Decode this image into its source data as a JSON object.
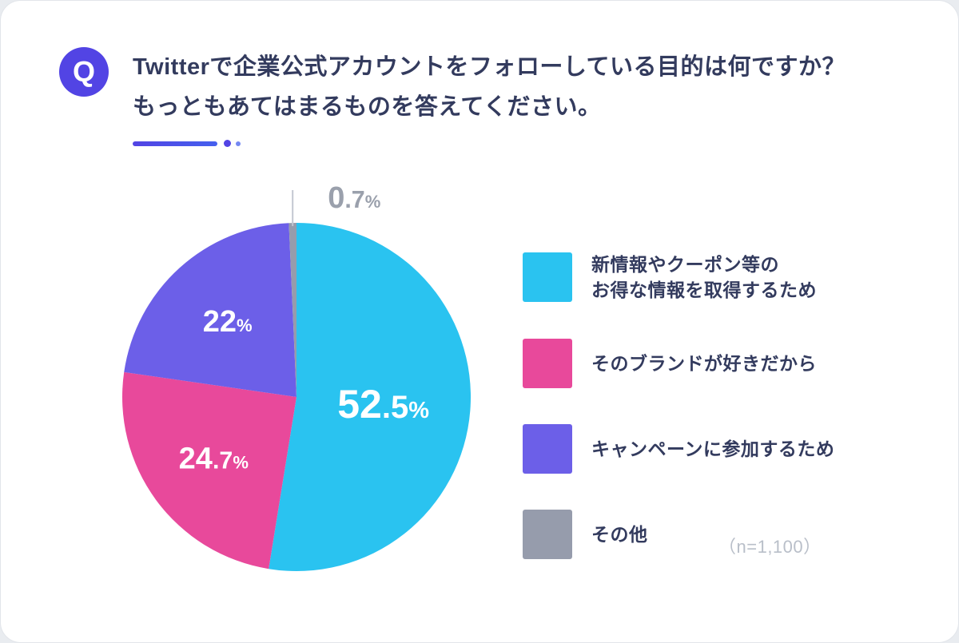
{
  "question": {
    "badge": "Q",
    "line1": "Twitterで企業公式アカウントをフォローしている目的は何ですか？",
    "line2": "もっともあてはまるものを答えてください。"
  },
  "colors": {
    "accent": "#5244e4",
    "accent2": "#4560ee",
    "title": "#333b5e",
    "note_gray": "#b9bfc9",
    "callout_line": "#c3c7d1"
  },
  "chart_data": {
    "type": "pie",
    "title": "Twitterで企業公式アカウントをフォローしている目的は何ですか？もっともあてはまるものを答えてください。",
    "unit": "%",
    "start_angle_deg": -90,
    "direction": "clockwise",
    "legend_position": "right",
    "sample_note": "（n=1,100）",
    "slices": [
      {
        "label": "新情報やクーポン等のお得な情報を取得するため",
        "legend_lines": [
          "新情報やクーポン等の",
          "お得な情報を取得するため"
        ],
        "value": 52.5,
        "color": "#2ac3f0",
        "label_color": "#ffffff",
        "callout": false
      },
      {
        "label": "そのブランドが好きだから",
        "legend_lines": [
          "そのブランドが好きだから"
        ],
        "value": 24.7,
        "color": "#e8499b",
        "label_color": "#ffffff",
        "callout": false
      },
      {
        "label": "キャンペーンに参加するため",
        "legend_lines": [
          "キャンペーンに参加するため"
        ],
        "value": 22,
        "color": "#6c5fe8",
        "label_color": "#ffffff",
        "callout": false
      },
      {
        "label": "その他",
        "legend_lines": [
          "その他"
        ],
        "value": 0.7,
        "color": "#969cac",
        "label_color": "#9aa0ac",
        "callout": true
      }
    ]
  }
}
